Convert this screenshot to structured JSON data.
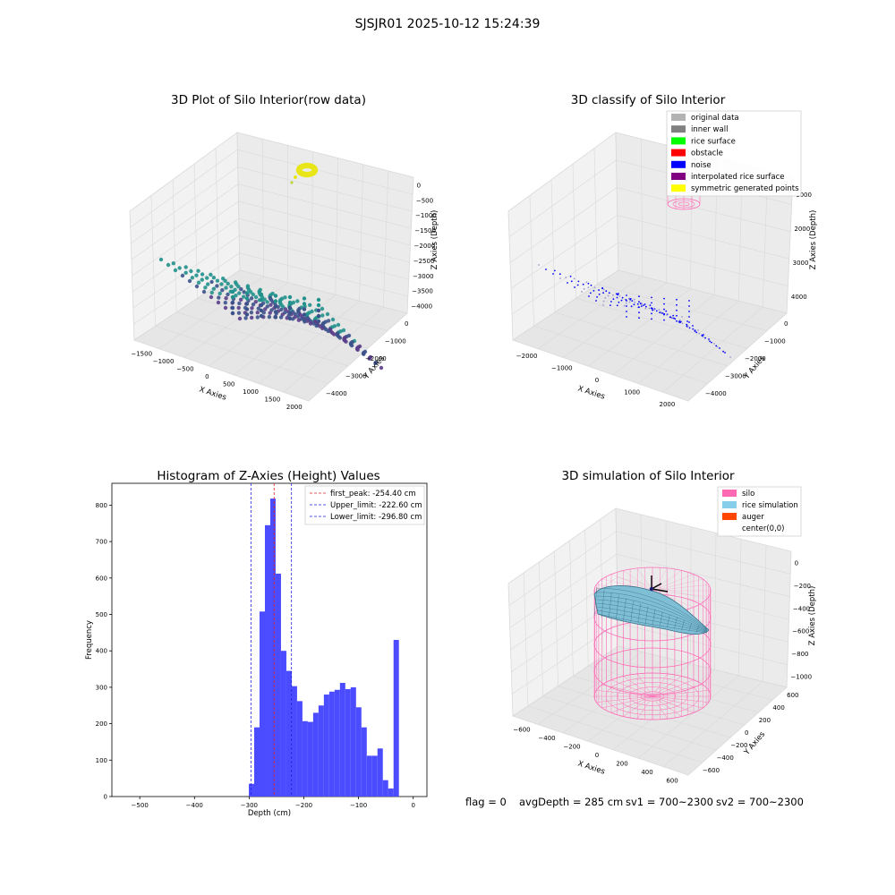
{
  "suptitle": "SJSJR01 2025-10-12 15:24:39",
  "status": {
    "flag": "flag = 0",
    "avg_depth": "avgDepth = 285 cm",
    "sv1": "sv1 = 700~2300",
    "sv2": "sv2 = 700~2300"
  },
  "chart_data": [
    {
      "type": "scatter",
      "title": "3D Plot of Silo Interior(row data)",
      "xlabel": "X Axies",
      "ylabel": "Y Axies",
      "zlabel": "Z Axies (Depth)",
      "x_ticks": [
        "−1500",
        "−1000",
        "−500",
        "0",
        "500",
        "1000",
        "1500",
        "2000"
      ],
      "y_ticks": [
        "0",
        "−1000",
        "−2000",
        "−3000",
        "−4000"
      ],
      "z_ticks": [
        "0",
        "−500",
        "−1000",
        "−1500",
        "−2000",
        "−2500",
        "−3000",
        "−3500",
        "−4000"
      ],
      "colors": {
        "high": "#e8e619",
        "mid": "#21918c",
        "low": "#3b528b",
        "lowest": "#5a3d8a"
      }
    },
    {
      "type": "scatter",
      "title": "3D classify of Silo Interior",
      "xlabel": "X Axies",
      "ylabel": "Y Axies",
      "zlabel": "Z Axies (Depth)",
      "x_ticks": [
        "−2000",
        "−1000",
        "0",
        "1000",
        "2000"
      ],
      "y_ticks": [
        "0",
        "−1000",
        "−2000",
        "−3000",
        "−4000"
      ],
      "z_ticks": [
        "1000",
        "2000",
        "3000",
        "4000"
      ],
      "legend": [
        {
          "label": "original data",
          "color": "#b3b3b3"
        },
        {
          "label": "inner wall",
          "color": "#808080"
        },
        {
          "label": "rice surface",
          "color": "#00ff00"
        },
        {
          "label": "obstacle",
          "color": "#ff0000"
        },
        {
          "label": "noise",
          "color": "#0000ff"
        },
        {
          "label": "interpolated rice surface",
          "color": "#800080"
        },
        {
          "label": "symmetric generated points",
          "color": "#ffff00"
        }
      ]
    },
    {
      "type": "bar",
      "title": "Histogram of Z-Axies (Height) Values",
      "xlabel": "Depth (cm)",
      "ylabel": "Frequency",
      "xlim": [
        -551,
        25
      ],
      "ylim": [
        0,
        860
      ],
      "x_ticks": [
        -500,
        -400,
        -300,
        -200,
        -100,
        0
      ],
      "y_ticks": [
        0,
        100,
        200,
        300,
        400,
        500,
        600,
        700,
        800
      ],
      "bin_width": 9.8,
      "bin_starts": [
        -300.6,
        -290.8,
        -281.0,
        -271.2,
        -261.4,
        -251.6,
        -241.8,
        -232.0,
        -222.2,
        -212.4,
        -202.6,
        -192.8,
        -183.0,
        -173.2,
        -163.4,
        -153.6,
        -143.8,
        -134.0,
        -124.2,
        -114.4,
        -104.6,
        -94.8,
        -85.0,
        -75.2,
        -65.4,
        -55.6,
        -45.8,
        -36.0,
        -26.2,
        -16.4,
        -6.6
      ],
      "values": [
        35,
        190,
        508,
        745,
        818,
        612,
        400,
        345,
        303,
        262,
        207,
        205,
        230,
        250,
        280,
        288,
        293,
        312,
        295,
        300,
        245,
        190,
        112,
        112,
        132,
        45,
        22,
        430,
        0,
        0,
        0
      ],
      "bar_color": "#4b4bff",
      "reference_lines": [
        {
          "label": "first_peak: -254.40 cm",
          "x": -254.4,
          "color": "#e02020"
        },
        {
          "label": "Upper_limit: -222.60 cm",
          "x": -222.6,
          "color": "#2020e0"
        },
        {
          "label": "Lower_limit: -296.80 cm",
          "x": -296.8,
          "color": "#2020e0"
        }
      ],
      "legend_position": "top-right"
    },
    {
      "type": "scatter",
      "title": "3D simulation of Silo Interior",
      "xlabel": "X Axies",
      "ylabel": "Y Axies",
      "zlabel": "Z Axies (Depth)",
      "x_ticks": [
        "−600",
        "−400",
        "−200",
        "0",
        "200",
        "400",
        "600"
      ],
      "y_ticks": [
        "600",
        "400",
        "200",
        "0",
        "−200",
        "−400",
        "−600"
      ],
      "z_ticks": [
        "0",
        "−200",
        "−400",
        "−600",
        "−800",
        "−1000"
      ],
      "legend": [
        {
          "label": "silo",
          "color": "#ff69b4"
        },
        {
          "label": "rice simulation",
          "color": "#87ceeb"
        },
        {
          "label": "auger",
          "color": "#ff4500"
        },
        {
          "label": "center(0,0)",
          "color": "#ffffff"
        }
      ]
    }
  ]
}
